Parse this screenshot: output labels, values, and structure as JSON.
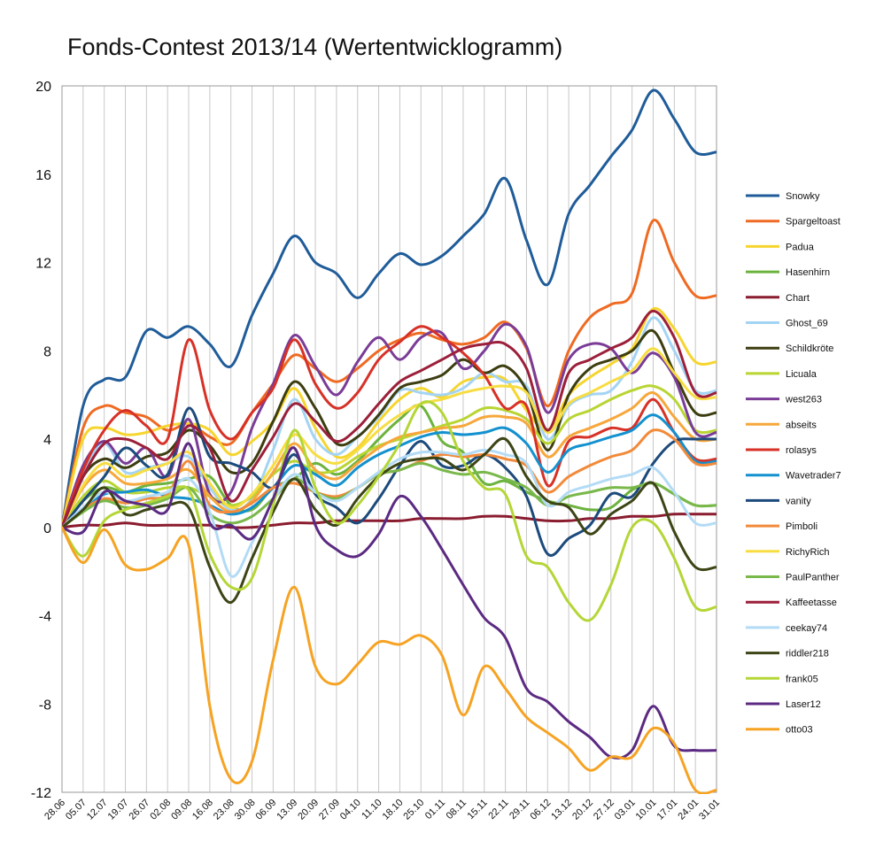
{
  "chart_data": {
    "type": "line",
    "title": "Fonds-Contest 2013/14 (Wertentwicklogramm)",
    "xlabel": "",
    "ylabel": "",
    "ylim": [
      -12,
      20
    ],
    "yticks": [
      "20",
      "16",
      "12",
      "8",
      "4",
      "0",
      "-4",
      "-8",
      "-12"
    ],
    "grid": "vertical",
    "legend": "right",
    "x": [
      "28.06",
      "05.07",
      "12.07",
      "19.07",
      "26.07",
      "02.08",
      "09.08",
      "16.08",
      "23.08",
      "30.08",
      "06.09",
      "13.09",
      "20.09",
      "27.09",
      "04.10",
      "11.10",
      "18.10",
      "25.10",
      "01.11",
      "08.11",
      "15.11",
      "22.11",
      "29.11",
      "06.12",
      "13.12",
      "20.12",
      "27.12",
      "03.01",
      "10.01",
      "17.01",
      "24.01",
      "31.01"
    ],
    "series": [
      {
        "name": "Snowky",
        "color": "#1f5c99",
        "values": [
          0,
          5.5,
          6.7,
          6.8,
          8.9,
          8.6,
          9.1,
          8.3,
          7.3,
          9.6,
          11.5,
          13.2,
          12.0,
          11.5,
          10.4,
          11.5,
          12.4,
          11.9,
          12.3,
          13.2,
          14.2,
          15.8,
          13.0,
          11.0,
          14.2,
          15.5,
          16.8,
          18.0,
          19.8,
          18.5,
          17.0,
          17.0
        ]
      },
      {
        "name": "Spargeltoast",
        "color": "#ef6a22",
        "values": [
          0,
          4.5,
          5.5,
          5.2,
          5.0,
          4.4,
          4.7,
          4.1,
          3.8,
          5.2,
          6.5,
          7.8,
          7.2,
          6.6,
          7.2,
          8.0,
          8.5,
          8.8,
          8.5,
          8.3,
          8.6,
          9.3,
          8.1,
          5.5,
          8.0,
          9.5,
          10.1,
          10.6,
          13.9,
          12.0,
          10.5,
          10.5
        ]
      },
      {
        "name": "Padua",
        "color": "#f6d52f",
        "values": [
          0,
          4.0,
          4.5,
          4.2,
          4.3,
          4.6,
          4.7,
          4.4,
          3.3,
          3.9,
          4.8,
          6.3,
          4.5,
          3.2,
          3.6,
          4.8,
          5.8,
          6.3,
          5.9,
          6.6,
          6.8,
          6.7,
          5.3,
          4.4,
          6.0,
          6.8,
          7.4,
          8.1,
          9.9,
          9.0,
          7.5,
          7.5
        ]
      },
      {
        "name": "Hasenhirn",
        "color": "#6cb33e",
        "values": [
          0,
          1.2,
          1.8,
          1.6,
          1.9,
          2.0,
          2.2,
          2.3,
          1.0,
          0.8,
          1.8,
          2.2,
          2.9,
          2.4,
          3.0,
          4.0,
          4.9,
          5.5,
          3.9,
          3.4,
          2.0,
          2.1,
          1.6,
          1.2,
          1.0,
          0.8,
          0.9,
          1.7,
          2.0,
          1.5,
          1.0,
          1.0
        ]
      },
      {
        "name": "Chart",
        "color": "#8a1c2f",
        "values": [
          0,
          0.1,
          0.1,
          0.2,
          0.1,
          0.1,
          0.1,
          0.1,
          0.0,
          0.0,
          0.1,
          0.2,
          0.2,
          0.3,
          0.3,
          0.3,
          0.3,
          0.4,
          0.4,
          0.4,
          0.5,
          0.5,
          0.4,
          0.3,
          0.3,
          0.4,
          0.4,
          0.5,
          0.5,
          0.6,
          0.6,
          0.6
        ]
      },
      {
        "name": "Ghost_69",
        "color": "#a4d4f4",
        "values": [
          0,
          2.5,
          3.8,
          2.5,
          2.7,
          2.9,
          3.2,
          1.8,
          0.8,
          1.3,
          3.5,
          5.8,
          4.0,
          3.3,
          4.1,
          5.0,
          6.2,
          6.1,
          6.0,
          6.3,
          7.0,
          6.6,
          6.4,
          4.0,
          5.5,
          6.0,
          6.2,
          7.5,
          9.5,
          8.0,
          6.2,
          6.2
        ]
      },
      {
        "name": "Schildkröte",
        "color": "#3c3d10",
        "values": [
          0,
          2.3,
          3.1,
          2.7,
          3.2,
          3.4,
          4.4,
          3.7,
          2.5,
          2.9,
          4.8,
          6.6,
          5.4,
          3.8,
          4.1,
          5.1,
          6.3,
          6.6,
          6.9,
          7.6,
          7.0,
          7.3,
          6.2,
          3.5,
          6.0,
          7.2,
          7.6,
          8.0,
          8.9,
          7.0,
          5.2,
          5.2
        ]
      },
      {
        "name": "Licuala",
        "color": "#b8d532",
        "values": [
          0,
          1.4,
          2.1,
          1.6,
          1.6,
          1.8,
          1.8,
          1.4,
          1.0,
          1.4,
          2.4,
          3.0,
          2.5,
          2.6,
          3.2,
          3.7,
          4.0,
          4.3,
          4.6,
          4.9,
          5.4,
          5.3,
          4.9,
          3.8,
          4.9,
          5.3,
          5.8,
          6.2,
          6.4,
          5.8,
          4.4,
          4.4
        ]
      },
      {
        "name": "west263",
        "color": "#7a3c96",
        "values": [
          0,
          2.8,
          3.9,
          2.9,
          3.6,
          2.3,
          4.9,
          1.5,
          1.6,
          4.5,
          6.5,
          8.7,
          7.3,
          6.0,
          7.5,
          8.6,
          7.6,
          8.6,
          8.8,
          7.2,
          8.0,
          9.2,
          8.2,
          5.2,
          7.6,
          8.3,
          8.1,
          7.0,
          7.9,
          6.8,
          4.3,
          4.3
        ]
      },
      {
        "name": "abseits",
        "color": "#f7a73b",
        "values": [
          0,
          1.8,
          2.6,
          2.0,
          2.0,
          2.2,
          2.6,
          1.4,
          0.7,
          1.2,
          2.5,
          3.8,
          2.6,
          2.2,
          2.9,
          3.6,
          4.1,
          4.3,
          4.5,
          4.6,
          5.0,
          5.0,
          4.7,
          3.2,
          4.1,
          4.5,
          4.9,
          5.4,
          6.1,
          5.0,
          4.0,
          4.0
        ]
      },
      {
        "name": "rolasys",
        "color": "#d73127",
        "values": [
          0,
          2.6,
          4.4,
          5.3,
          4.6,
          4.0,
          8.5,
          5.3,
          4.0,
          5.2,
          6.3,
          8.5,
          6.5,
          5.4,
          6.1,
          7.6,
          8.4,
          9.1,
          8.6,
          7.9,
          6.9,
          5.4,
          5.5,
          1.9,
          3.9,
          4.1,
          4.5,
          4.5,
          5.8,
          4.3,
          3.1,
          3.1
        ]
      },
      {
        "name": "Wavetrader7",
        "color": "#1391cf",
        "values": [
          0,
          0.8,
          1.5,
          1.6,
          1.7,
          1.4,
          1.3,
          1.0,
          0.6,
          0.9,
          1.8,
          2.8,
          2.4,
          1.9,
          2.7,
          3.3,
          3.7,
          4.1,
          4.3,
          4.2,
          4.3,
          4.5,
          3.8,
          2.5,
          3.5,
          3.8,
          4.1,
          4.4,
          5.1,
          4.3,
          3.0,
          3.0
        ]
      },
      {
        "name": "vanity",
        "color": "#1c4a7c",
        "values": [
          0,
          1.2,
          2.3,
          3.6,
          2.8,
          2.4,
          5.4,
          3.2,
          2.9,
          2.5,
          1.8,
          3.3,
          1.5,
          0.9,
          0.2,
          1.3,
          2.8,
          3.9,
          2.8,
          2.8,
          3.3,
          2.7,
          1.4,
          -1.2,
          -0.5,
          0.1,
          1.5,
          1.4,
          2.9,
          3.9,
          4.0,
          4.0
        ]
      },
      {
        "name": "Pimboli",
        "color": "#f28a3a",
        "values": [
          0,
          0.8,
          1.3,
          1.1,
          1.3,
          1.5,
          3.0,
          1.0,
          0.7,
          1.1,
          1.8,
          2.0,
          1.6,
          1.4,
          1.8,
          2.4,
          2.6,
          3.0,
          3.3,
          3.2,
          3.3,
          3.1,
          2.8,
          1.6,
          2.3,
          2.8,
          3.2,
          3.5,
          4.4,
          4.0,
          2.9,
          2.9
        ]
      },
      {
        "name": "RichyRich",
        "color": "#f7dd42",
        "values": [
          0,
          1.9,
          2.9,
          2.3,
          2.6,
          2.9,
          3.4,
          2.0,
          0.9,
          1.5,
          2.8,
          4.2,
          3.3,
          2.9,
          3.5,
          4.4,
          5.1,
          5.6,
          5.8,
          6.1,
          6.3,
          6.4,
          6.1,
          4.3,
          5.6,
          6.1,
          6.6,
          7.1,
          8.1,
          7.0,
          5.9,
          5.9
        ]
      },
      {
        "name": "PaulPanther",
        "color": "#79b84a",
        "values": [
          0,
          0.7,
          1.2,
          0.9,
          1.0,
          1.3,
          1.8,
          0.6,
          0.2,
          0.5,
          1.3,
          2.2,
          1.6,
          1.3,
          1.8,
          2.4,
          2.6,
          2.9,
          2.6,
          2.4,
          2.5,
          2.2,
          1.8,
          1.0,
          1.4,
          1.6,
          1.8,
          1.8,
          2.0,
          1.5,
          1.0,
          1.0
        ]
      },
      {
        "name": "Kaffeetasse",
        "color": "#9c1f3a",
        "values": [
          0,
          2.3,
          3.8,
          4.0,
          3.6,
          3.1,
          4.6,
          3.6,
          1.2,
          2.6,
          4.1,
          5.6,
          4.8,
          3.9,
          4.5,
          5.6,
          6.6,
          7.1,
          7.6,
          8.1,
          8.3,
          8.3,
          7.2,
          4.4,
          7.0,
          7.6,
          8.1,
          8.6,
          9.8,
          8.6,
          6.1,
          6.1
        ]
      },
      {
        "name": "ceekay74",
        "color": "#b3dbf5",
        "values": [
          0,
          0.9,
          1.6,
          1.2,
          1.4,
          1.6,
          2.2,
          0.7,
          -2.2,
          -0.7,
          1.2,
          2.4,
          1.6,
          1.2,
          1.8,
          2.5,
          3.1,
          3.4,
          3.4,
          3.3,
          3.5,
          3.3,
          2.9,
          1.0,
          1.6,
          1.9,
          2.2,
          2.4,
          2.7,
          1.6,
          0.2,
          0.2
        ]
      },
      {
        "name": "riddler218",
        "color": "#3d4415",
        "values": [
          0,
          0.8,
          1.8,
          0.6,
          0.8,
          1.0,
          0.9,
          -1.8,
          -3.4,
          -1.4,
          0.7,
          2.2,
          0.8,
          0.1,
          1.3,
          2.3,
          2.9,
          3.1,
          3.1,
          2.6,
          3.3,
          4.0,
          2.3,
          1.2,
          0.9,
          -0.3,
          0.6,
          1.2,
          2.0,
          -0.2,
          -1.8,
          -1.8
        ]
      },
      {
        "name": "frank05",
        "color": "#b4d636",
        "values": [
          0,
          -1.3,
          0.3,
          0.8,
          1.1,
          1.4,
          1.7,
          -1.2,
          -2.7,
          -2.3,
          1.0,
          4.4,
          1.8,
          0.2,
          1.0,
          2.3,
          3.8,
          5.6,
          5.2,
          3.0,
          1.8,
          1.5,
          -1.3,
          -1.8,
          -3.4,
          -4.2,
          -2.6,
          0.0,
          0.2,
          -1.4,
          -3.6,
          -3.6
        ]
      },
      {
        "name": "Laser12",
        "color": "#5b2a82",
        "values": [
          0,
          -0.2,
          1.6,
          1.2,
          1.0,
          0.8,
          3.8,
          0.2,
          0.1,
          -0.5,
          1.3,
          3.6,
          0.1,
          -1.0,
          -1.3,
          -0.3,
          1.4,
          0.5,
          -1.0,
          -2.6,
          -4.1,
          -5.0,
          -7.3,
          -7.9,
          -8.8,
          -9.5,
          -10.4,
          -10.1,
          -8.1,
          -9.9,
          -10.1,
          -10.1
        ]
      },
      {
        "name": "otto03",
        "color": "#f6a323",
        "values": [
          0,
          -1.6,
          -0.1,
          -1.7,
          -1.9,
          -1.4,
          -0.8,
          -8.1,
          -11.4,
          -10.6,
          -6.0,
          -2.7,
          -6.3,
          -7.1,
          -6.2,
          -5.2,
          -5.3,
          -4.9,
          -5.8,
          -8.5,
          -6.3,
          -7.3,
          -8.6,
          -9.3,
          -10.0,
          -11.0,
          -10.4,
          -10.4,
          -9.1,
          -9.8,
          -11.9,
          -11.9
        ]
      }
    ]
  }
}
